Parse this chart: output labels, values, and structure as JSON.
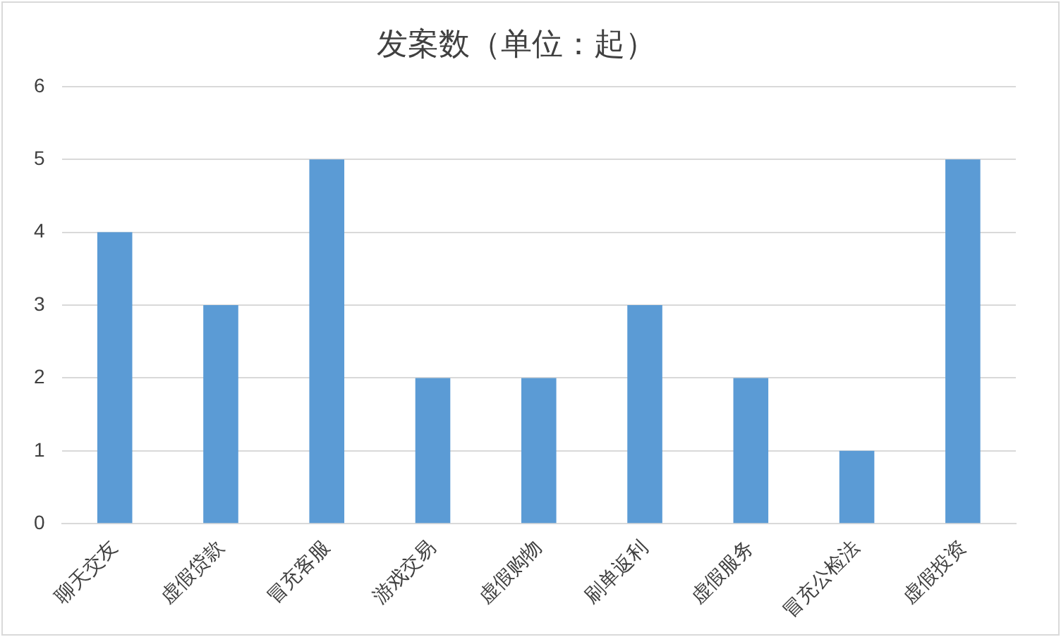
{
  "chart_data": {
    "type": "bar",
    "title": "发案数（单位：起）",
    "categories": [
      "聊天交友",
      "虚假贷款",
      "冒充客服",
      "游戏交易",
      "虚假购物",
      "刷单返利",
      "虚假服务",
      "冒充公检法",
      "虚假投资"
    ],
    "values": [
      4,
      3,
      5,
      2,
      2,
      3,
      2,
      1,
      5
    ],
    "color": "#5b9bd5",
    "ylim": [
      0,
      6
    ],
    "yticks": [
      0,
      1,
      2,
      3,
      4,
      5,
      6
    ],
    "grid": "y",
    "legend": false
  }
}
